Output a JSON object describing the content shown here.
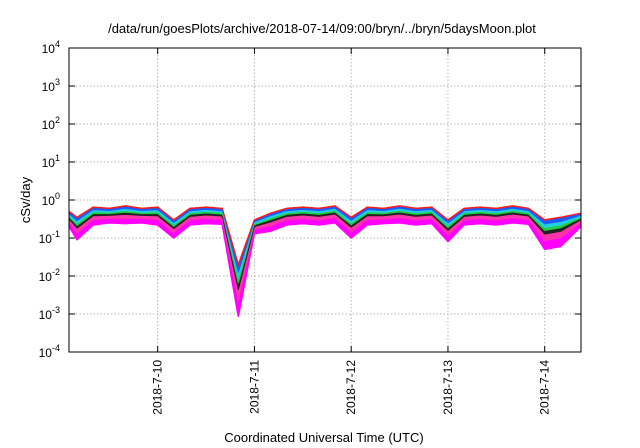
{
  "chart_data": {
    "type": "area",
    "title": "/data/run/goesPlots/archive/2018-07-14/09:00/bryn/../bryn/5daysMoon.plot",
    "xlabel": "Coordinated Universal Time (UTC)",
    "ylabel": "cSv/day",
    "y_scale": "log",
    "ylim": [
      0.0001,
      10000
    ],
    "y_ticks": [
      {
        "base": "10",
        "exp": "-4",
        "value": 0.0001
      },
      {
        "base": "10",
        "exp": "-3",
        "value": 0.001
      },
      {
        "base": "10",
        "exp": "-2",
        "value": 0.01
      },
      {
        "base": "10",
        "exp": "-1",
        "value": 0.1
      },
      {
        "base": "10",
        "exp": "0",
        "value": 1
      },
      {
        "base": "10",
        "exp": "1",
        "value": 10
      },
      {
        "base": "10",
        "exp": "2",
        "value": 100
      },
      {
        "base": "10",
        "exp": "3",
        "value": 1000
      },
      {
        "base": "10",
        "exp": "4",
        "value": 10000
      }
    ],
    "xlim": [
      "2018-07-09 02:00",
      "2018-07-14 09:00"
    ],
    "x_ticks": [
      "2018-7-10",
      "2018-7-11",
      "2018-7-12",
      "2018-7-13",
      "2018-7-14"
    ],
    "grid": true,
    "band_colors": [
      "#ff1a1a",
      "#1a5cff",
      "#22cfe0",
      "#22cc44",
      "#222222",
      "#ff33aa",
      "#ff00ff"
    ],
    "series": [
      {
        "role": "upper envelope",
        "color": "#ff1a1a",
        "x": [
          "2018-07-09 02:00",
          "2018-07-09 04:00",
          "2018-07-09 08:00",
          "2018-07-09 12:00",
          "2018-07-09 16:00",
          "2018-07-09 20:00",
          "2018-07-10 00:00",
          "2018-07-10 04:00",
          "2018-07-10 08:00",
          "2018-07-10 12:00",
          "2018-07-10 16:00",
          "2018-07-10 20:00",
          "2018-07-11 00:00",
          "2018-07-11 04:00",
          "2018-07-11 08:00",
          "2018-07-11 12:00",
          "2018-07-11 16:00",
          "2018-07-11 20:00",
          "2018-07-12 00:00",
          "2018-07-12 04:00",
          "2018-07-12 08:00",
          "2018-07-12 12:00",
          "2018-07-12 16:00",
          "2018-07-12 20:00",
          "2018-07-13 00:00",
          "2018-07-13 04:00",
          "2018-07-13 08:00",
          "2018-07-13 12:00",
          "2018-07-13 16:00",
          "2018-07-13 20:00",
          "2018-07-14 00:00",
          "2018-07-14 04:00",
          "2018-07-14 09:00"
        ],
        "y": [
          0.5,
          0.35,
          0.65,
          0.6,
          0.7,
          0.6,
          0.65,
          0.3,
          0.6,
          0.65,
          0.6,
          0.02,
          0.3,
          0.45,
          0.6,
          0.65,
          0.6,
          0.7,
          0.35,
          0.65,
          0.6,
          0.7,
          0.6,
          0.65,
          0.3,
          0.6,
          0.65,
          0.6,
          0.7,
          0.6,
          0.3,
          0.35,
          0.45
        ]
      },
      {
        "role": "lower envelope",
        "color": "#ff00ff",
        "x": [
          "2018-07-09 02:00",
          "2018-07-09 04:00",
          "2018-07-09 08:00",
          "2018-07-09 12:00",
          "2018-07-09 16:00",
          "2018-07-09 20:00",
          "2018-07-10 00:00",
          "2018-07-10 04:00",
          "2018-07-10 08:00",
          "2018-07-10 12:00",
          "2018-07-10 16:00",
          "2018-07-10 20:00",
          "2018-07-11 00:00",
          "2018-07-11 04:00",
          "2018-07-11 08:00",
          "2018-07-11 12:00",
          "2018-07-11 16:00",
          "2018-07-11 20:00",
          "2018-07-12 00:00",
          "2018-07-12 04:00",
          "2018-07-12 08:00",
          "2018-07-12 12:00",
          "2018-07-12 16:00",
          "2018-07-12 20:00",
          "2018-07-13 00:00",
          "2018-07-13 04:00",
          "2018-07-13 08:00",
          "2018-07-13 12:00",
          "2018-07-13 16:00",
          "2018-07-13 20:00",
          "2018-07-14 00:00",
          "2018-07-14 04:00",
          "2018-07-14 09:00"
        ],
        "y": [
          0.2,
          0.09,
          0.22,
          0.25,
          0.24,
          0.25,
          0.22,
          0.1,
          0.22,
          0.24,
          0.23,
          0.00085,
          0.13,
          0.15,
          0.22,
          0.24,
          0.22,
          0.25,
          0.1,
          0.22,
          0.24,
          0.25,
          0.22,
          0.24,
          0.08,
          0.22,
          0.24,
          0.22,
          0.25,
          0.23,
          0.05,
          0.06,
          0.2
        ]
      }
    ]
  }
}
